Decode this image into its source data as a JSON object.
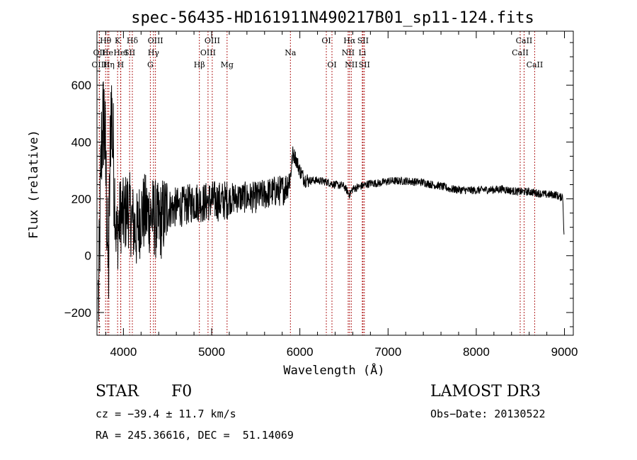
{
  "chart_data": {
    "type": "line",
    "title": "spec-56435-HD161911N490217B01_sp11-124.fits",
    "xlabel": "Wavelength (Å)",
    "ylabel": "Flux (relative)",
    "xlim": [
      3700,
      9100
    ],
    "ylim": [
      -280,
      790
    ],
    "xticks": [
      4000,
      5000,
      6000,
      7000,
      8000,
      9000
    ],
    "yticks": [
      -200,
      0,
      200,
      400,
      600
    ],
    "grid": false,
    "line_color": "#000000",
    "marker_color": "#b22222",
    "spectrum_profile": {
      "x": [
        3720,
        3750,
        3780,
        3800,
        3830,
        3860,
        3890,
        3920,
        3970,
        4000,
        4050,
        4100,
        4150,
        4200,
        4300,
        4350,
        4400,
        4500,
        4600,
        4700,
        4800,
        4861,
        4900,
        5000,
        5100,
        5200,
        5300,
        5400,
        5500,
        5600,
        5700,
        5800,
        5850,
        5893,
        5920,
        5950,
        6000,
        6050,
        6100,
        6200,
        6300,
        6400,
        6500,
        6563,
        6600,
        6700,
        6800,
        6900,
        7000,
        7100,
        7200,
        7300,
        7400,
        7500,
        7600,
        7700,
        7800,
        7900,
        8000,
        8100,
        8200,
        8300,
        8400,
        8500,
        8600,
        8700,
        8800,
        8900,
        8950,
        8980,
        9000
      ],
      "y": [
        -150,
        380,
        500,
        300,
        -80,
        560,
        320,
        60,
        150,
        130,
        175,
        120,
        80,
        150,
        145,
        135,
        110,
        165,
        170,
        175,
        190,
        190,
        185,
        195,
        190,
        200,
        205,
        205,
        205,
        215,
        225,
        230,
        245,
        280,
        360,
        345,
        300,
        270,
        265,
        265,
        260,
        250,
        245,
        215,
        235,
        245,
        255,
        255,
        262,
        263,
        263,
        260,
        258,
        250,
        245,
        235,
        232,
        230,
        230,
        232,
        232,
        235,
        228,
        225,
        225,
        220,
        215,
        215,
        205,
        210,
        30
      ]
    },
    "spectral_lines": [
      {
        "label": "OII",
        "x": 3727,
        "row": 1
      },
      {
        "label": "OIII",
        "x": 3727,
        "row": 2
      },
      {
        "label": "Hθ",
        "x": 3798,
        "row": 0
      },
      {
        "label": "He",
        "x": 3820,
        "row": 1
      },
      {
        "label": "Hη",
        "x": 3835,
        "row": 2
      },
      {
        "label": "K",
        "x": 3934,
        "row": 0
      },
      {
        "label": "H",
        "x": 3968,
        "row": 2
      },
      {
        "label": "HeI",
        "x": 3970,
        "row": 1
      },
      {
        "label": "SII",
        "x": 4070,
        "row": 1
      },
      {
        "label": "Hδ",
        "x": 4101,
        "row": 0
      },
      {
        "label": "OIII",
        "x": 4363,
        "row": 0
      },
      {
        "label": "Hγ",
        "x": 4341,
        "row": 1
      },
      {
        "label": "G",
        "x": 4305,
        "row": 2
      },
      {
        "label": "Hβ",
        "x": 4861,
        "row": 2
      },
      {
        "label": "OIII",
        "x": 5007,
        "row": 0
      },
      {
        "label": "OIII",
        "x": 4959,
        "row": 1
      },
      {
        "label": "Mg",
        "x": 5175,
        "row": 2
      },
      {
        "label": "Na",
        "x": 5893,
        "row": 1
      },
      {
        "label": "OI",
        "x": 6300,
        "row": 0
      },
      {
        "label": "OI",
        "x": 6364,
        "row": 2
      },
      {
        "label": "Hα",
        "x": 6563,
        "row": 0
      },
      {
        "label": "NII",
        "x": 6548,
        "row": 1
      },
      {
        "label": "NII",
        "x": 6583,
        "row": 2
      },
      {
        "label": "SII",
        "x": 6716,
        "row": 0
      },
      {
        "label": "Li",
        "x": 6708,
        "row": 1
      },
      {
        "label": "SII",
        "x": 6731,
        "row": 2
      },
      {
        "label": "CaII",
        "x": 8542,
        "row": 0
      },
      {
        "label": "CaII",
        "x": 8498,
        "row": 1
      },
      {
        "label": "CaII",
        "x": 8662,
        "row": 2
      }
    ]
  },
  "info": {
    "object_class": "STAR",
    "subclass": "F0",
    "survey": "LAMOST DR3",
    "cz": "cz = −39.4 ± 11.7 km/s",
    "obs_date": "Obs−Date: 20130522",
    "coords": "RA = 245.36616, DEC =  51.14069"
  }
}
